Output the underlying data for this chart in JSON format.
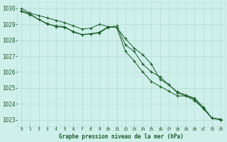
{
  "title": "Graphe pression niveau de la mer (hPa)",
  "background_color": "#cff0ea",
  "grid_color": "#b8ddd8",
  "line_color": "#1a5c2a",
  "x_min": -0.5,
  "x_max": 23.5,
  "y_min": 1022.6,
  "y_max": 1030.4,
  "x_ticks": [
    0,
    1,
    2,
    3,
    4,
    5,
    6,
    7,
    8,
    9,
    10,
    11,
    12,
    13,
    14,
    15,
    16,
    17,
    18,
    19,
    20,
    21,
    22,
    23
  ],
  "y_ticks": [
    1023,
    1024,
    1025,
    1026,
    1027,
    1028,
    1029,
    1030
  ],
  "series1": [
    1030.0,
    1029.7,
    1029.55,
    1029.4,
    1029.25,
    1029.1,
    1028.9,
    1028.7,
    1028.75,
    1029.0,
    1028.85,
    1028.8,
    1027.3,
    1026.7,
    1026.0,
    1025.4,
    1025.1,
    1024.8,
    1024.5,
    1024.5,
    1024.3,
    1023.7,
    1023.1,
    1023.0
  ],
  "series2": [
    1029.8,
    1029.6,
    1029.3,
    1029.0,
    1028.9,
    1028.85,
    1028.5,
    1028.35,
    1028.4,
    1028.45,
    1028.8,
    1028.9,
    1027.7,
    1027.3,
    1026.5,
    1026.0,
    1025.7,
    1025.2,
    1024.7,
    1024.5,
    1024.2,
    1023.7,
    1023.1,
    1023.05
  ],
  "series3": [
    1029.85,
    1029.65,
    1029.3,
    1029.05,
    1028.85,
    1028.8,
    1028.55,
    1028.35,
    1028.4,
    1028.5,
    1028.85,
    1028.8,
    1028.1,
    1027.5,
    1027.1,
    1026.5,
    1025.55,
    1025.2,
    1024.75,
    1024.55,
    1024.35,
    1023.8,
    1023.1,
    1023.0
  ]
}
